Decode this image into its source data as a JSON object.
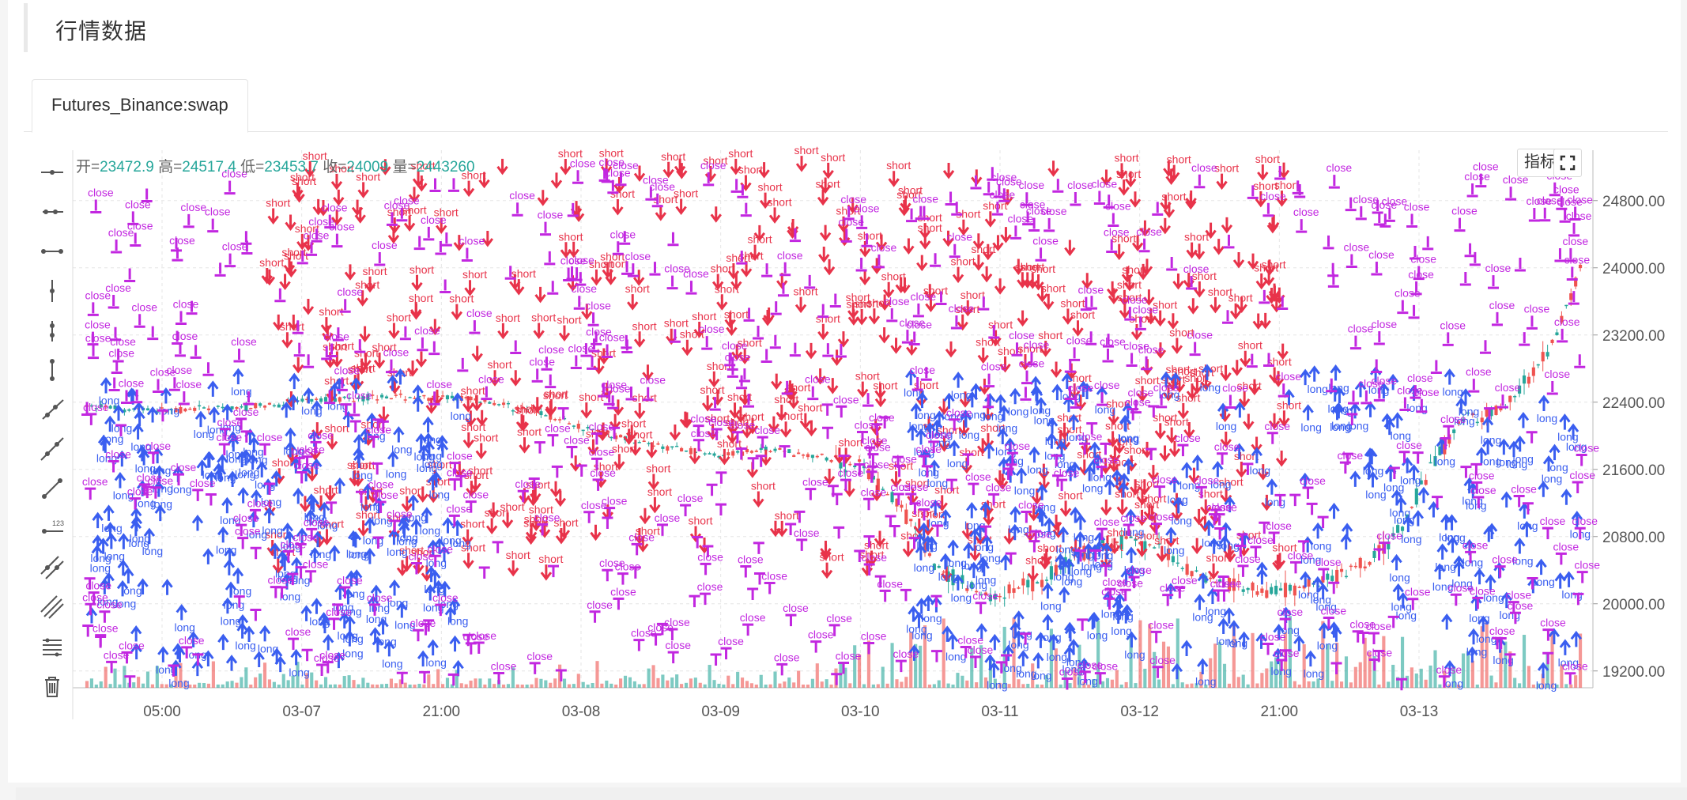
{
  "header": {
    "title": "行情数据"
  },
  "tabs": [
    {
      "label": "Futures_Binance:swap",
      "active": true
    }
  ],
  "ohlc": {
    "open_label": "开=",
    "open": "23472.9",
    "high_label": "高=",
    "high": "24517.4",
    "low_label": "低=",
    "low": "23453.7",
    "close_label": "收=",
    "close": "24009",
    "volume_label": "量=",
    "volume": "2443260"
  },
  "buttons": {
    "indicator_label": "指标"
  },
  "toolbar": {
    "tools": [
      "horizontal-line-icon",
      "horizontal-ray-icon",
      "horizontal-segment-icon",
      "vertical-line-icon",
      "vertical-ray-icon",
      "vertical-segment-icon",
      "ray-icon",
      "straight-line-icon",
      "segment-icon",
      "price-line-icon",
      "parallel-channel-icon",
      "price-channel-icon",
      "fibonacci-icon",
      "delete-icon"
    ]
  },
  "colors": {
    "up": "#26a69a",
    "down": "#ef5350",
    "long": "#3a5ef0",
    "short": "#e8334a",
    "close": "#c227e0",
    "grid": "#e6e6e6",
    "axis_text": "#555555"
  },
  "chart_data": {
    "type": "candlestick",
    "y_axis": {
      "ticks": [
        "19200.00",
        "20000.00",
        "20800.00",
        "21600.00",
        "22400.00",
        "23200.00",
        "24000.00",
        "24800.00"
      ],
      "ylim": [
        19000,
        25400
      ],
      "position": "right"
    },
    "x_axis": {
      "ticks": [
        "05:00",
        "03-07",
        "21:00",
        "03-08",
        "03-09",
        "03-10",
        "03-11",
        "03-12",
        "21:00",
        "03-13"
      ]
    },
    "grid": true,
    "price_path": [
      [
        0,
        22350
      ],
      [
        0.05,
        22300
      ],
      [
        0.1,
        22330
      ],
      [
        0.15,
        22420
      ],
      [
        0.2,
        22470
      ],
      [
        0.26,
        22440
      ],
      [
        0.3,
        22290
      ],
      [
        0.34,
        22060
      ],
      [
        0.38,
        21890
      ],
      [
        0.42,
        21780
      ],
      [
        0.46,
        21840
      ],
      [
        0.5,
        21720
      ],
      [
        0.52,
        21620
      ],
      [
        0.55,
        21040
      ],
      [
        0.57,
        20400
      ],
      [
        0.6,
        20100
      ],
      [
        0.62,
        20150
      ],
      [
        0.64,
        20280
      ],
      [
        0.66,
        20550
      ],
      [
        0.7,
        20800
      ],
      [
        0.72,
        20600
      ],
      [
        0.75,
        20300
      ],
      [
        0.78,
        20200
      ],
      [
        0.8,
        20150
      ],
      [
        0.83,
        20280
      ],
      [
        0.86,
        20500
      ],
      [
        0.88,
        20900
      ],
      [
        0.9,
        21600
      ],
      [
        0.92,
        22200
      ],
      [
        0.95,
        22350
      ],
      [
        0.98,
        23000
      ],
      [
        1.0,
        24009
      ]
    ],
    "signal_labels": [
      "long",
      "short",
      "close"
    ],
    "volume_series": true
  }
}
